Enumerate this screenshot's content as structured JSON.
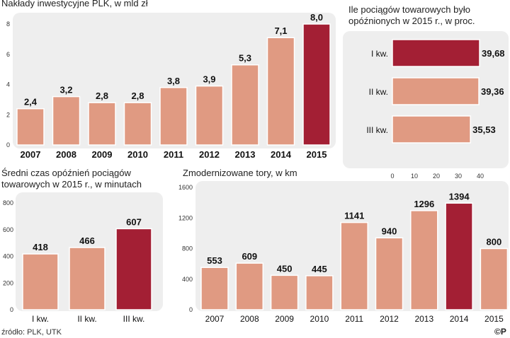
{
  "colors": {
    "bar": "#e09a82",
    "highlight": "#a31f34",
    "panel": "#eeeeee",
    "stroke": "#ffffff"
  },
  "chart_data": [
    {
      "id": "invest",
      "type": "bar",
      "title": "Nakłady inwestycyjne PLK, w mld zł",
      "categories": [
        "2007",
        "2008",
        "2009",
        "2010",
        "2011",
        "2012",
        "2013",
        "2014",
        "2015"
      ],
      "values": [
        2.4,
        3.2,
        2.8,
        2.8,
        3.8,
        3.9,
        5.3,
        7.1,
        8.0
      ],
      "value_labels": [
        "2,4",
        "3,2",
        "2,8",
        "2,8",
        "3,8",
        "3,9",
        "5,3",
        "7,1",
        "8,0"
      ],
      "highlight_index": 8,
      "ylim": [
        0,
        8
      ],
      "yticks": [
        0,
        2,
        4,
        6,
        8
      ]
    },
    {
      "id": "delayed",
      "type": "bar",
      "orientation": "horizontal",
      "title_lines": [
        "Ile pociągów towarowych było",
        "opóźnionych w 2015 r., w proc."
      ],
      "categories": [
        "I kw.",
        "II kw.",
        "III kw."
      ],
      "values": [
        39.68,
        39.36,
        35.53
      ],
      "value_labels": [
        "39,68",
        "39,36",
        "35,53"
      ],
      "highlight_index": 0,
      "xlim": [
        0,
        40
      ],
      "xticks": [
        0,
        10,
        20,
        30,
        40
      ]
    },
    {
      "id": "delay_time",
      "type": "bar",
      "title_lines": [
        "Średni czas opóźnień pociągów",
        "towarowych w 2015 r., w minutach"
      ],
      "categories": [
        "I kw.",
        "II kw.",
        "III kw."
      ],
      "values": [
        418,
        466,
        607
      ],
      "value_labels": [
        "418",
        "466",
        "607"
      ],
      "highlight_index": 2,
      "ylim": [
        0,
        800
      ],
      "yticks": [
        0,
        200,
        400,
        600,
        800
      ]
    },
    {
      "id": "tracks",
      "type": "bar",
      "title": "Zmodernizowane tory, w km",
      "categories": [
        "2007",
        "2008",
        "2009",
        "2010",
        "2011",
        "2012",
        "2013",
        "2014",
        "2015"
      ],
      "values": [
        553,
        609,
        450,
        445,
        1141,
        940,
        1296,
        1394,
        800
      ],
      "value_labels": [
        "553",
        "609",
        "450",
        "445",
        "1141",
        "940",
        "1296",
        "1394",
        "800"
      ],
      "highlight_index": 7,
      "ylim": [
        0,
        1600
      ],
      "yticks": [
        0,
        400,
        800,
        1200,
        1600
      ]
    }
  ],
  "footer": {
    "source": "źródło: PLK, UTK",
    "logo": "©P"
  }
}
